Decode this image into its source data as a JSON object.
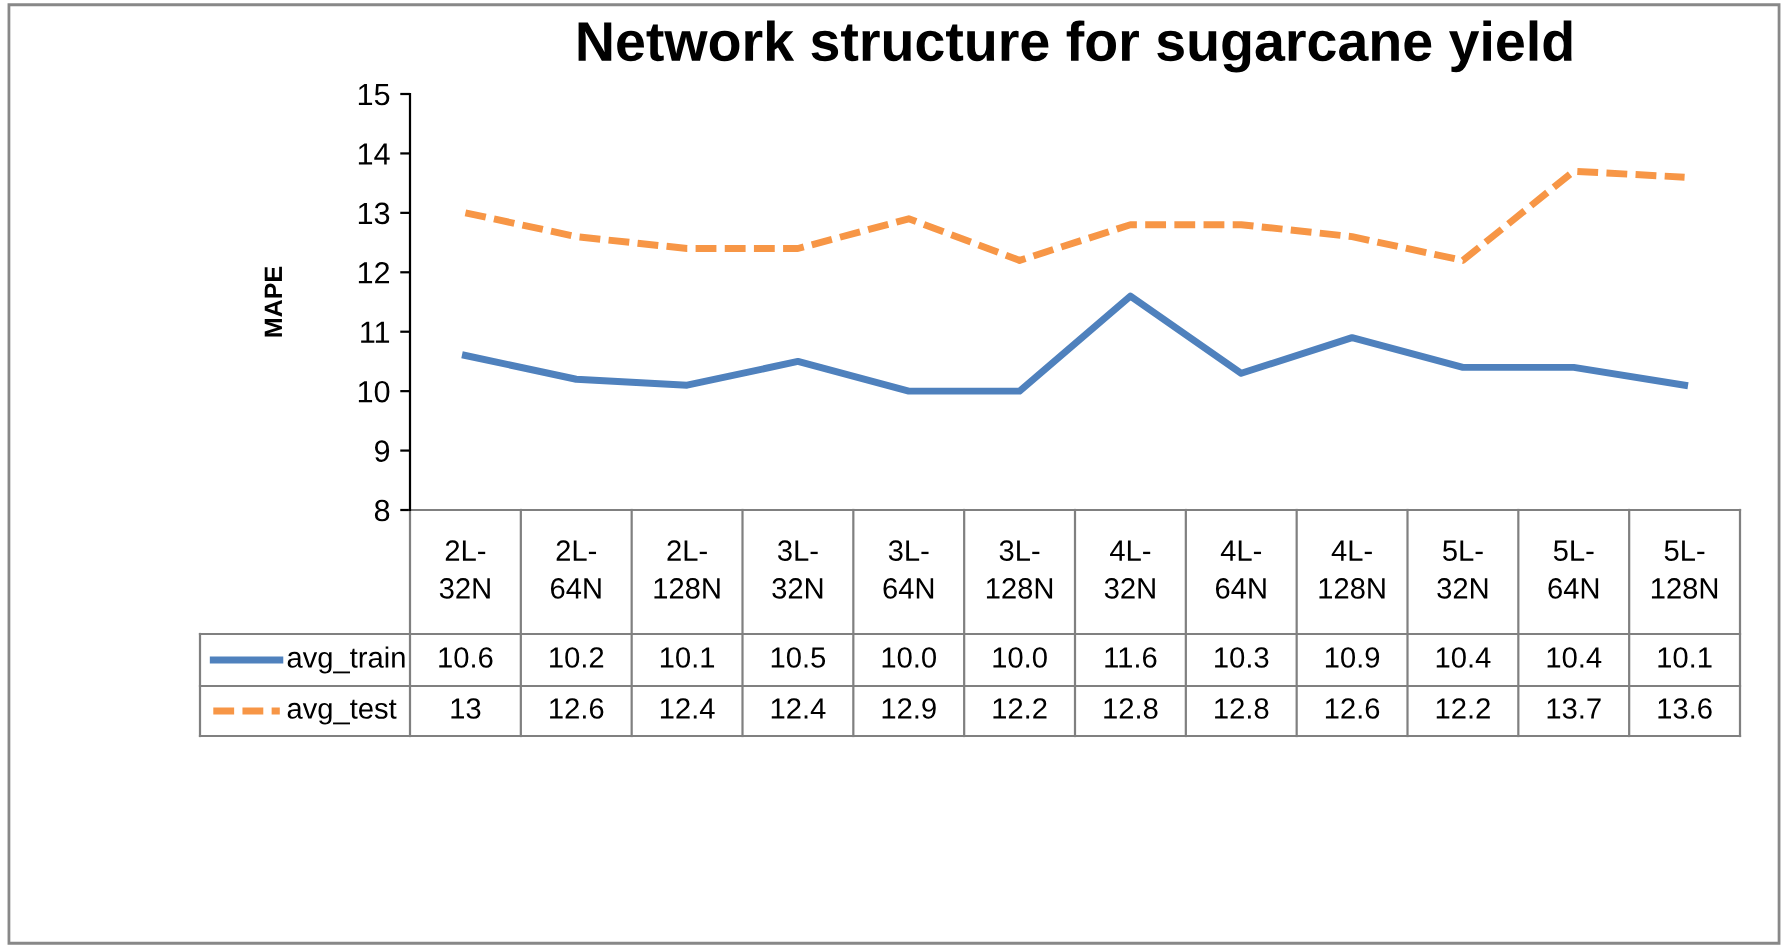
{
  "chart_data": {
    "type": "line",
    "title": "Network structure for sugarcane yield",
    "ylabel": "MAPE",
    "categories": [
      "2L-32N",
      "2L-64N",
      "2L-128N",
      "3L-32N",
      "3L-64N",
      "3L-128N",
      "4L-32N",
      "4L-64N",
      "4L-128N",
      "5L-32N",
      "5L-64N",
      "5L-128N"
    ],
    "series": [
      {
        "name": "avg_train",
        "color": "#4f81bd",
        "line_style": "solid",
        "values": [
          10.6,
          10.2,
          10.1,
          10.5,
          10.0,
          10.0,
          11.6,
          10.3,
          10.9,
          10.4,
          10.4,
          10.1
        ],
        "value_labels": [
          "10.6",
          "10.2",
          "10.1",
          "10.5",
          "10.0",
          "10.0",
          "11.6",
          "10.3",
          "10.9",
          "10.4",
          "10.4",
          "10.1"
        ]
      },
      {
        "name": "avg_test",
        "color": "#f79646",
        "line_style": "dashed",
        "values": [
          13,
          12.6,
          12.4,
          12.4,
          12.9,
          12.2,
          12.8,
          12.8,
          12.6,
          12.2,
          13.7,
          13.6
        ],
        "value_labels": [
          "13",
          "12.6",
          "12.4",
          "12.4",
          "12.9",
          "12.2",
          "12.8",
          "12.8",
          "12.6",
          "12.2",
          "13.7",
          "13.6"
        ]
      }
    ],
    "ylim": [
      8,
      15
    ],
    "yticks": [
      8,
      9,
      10,
      11,
      12,
      13,
      14,
      15
    ],
    "grid": false,
    "marker": "none",
    "legend": "bottom left"
  }
}
